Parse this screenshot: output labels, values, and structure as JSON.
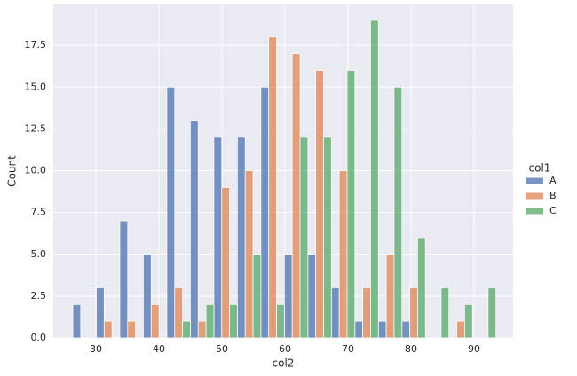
{
  "chart_data": {
    "type": "histogram",
    "multiple": "dodge",
    "x_label": "col2",
    "y_label": "Count",
    "legend_title": "col1",
    "legend_position": "right",
    "grid": true,
    "bins": [
      26.34,
      30.07,
      33.8,
      37.53,
      41.26,
      44.99,
      48.72,
      52.45,
      56.18,
      59.91,
      63.64,
      67.37,
      71.1,
      74.83,
      78.56,
      82.29,
      86.02,
      89.75,
      93.48
    ],
    "series": [
      {
        "name": "A",
        "color": "#4c72b0",
        "values": [
          2,
          3,
          7,
          5,
          15,
          13,
          12,
          12,
          15,
          5,
          5,
          3,
          1,
          1,
          1,
          0,
          0,
          0
        ]
      },
      {
        "name": "B",
        "color": "#dd8452",
        "values": [
          0,
          1,
          1,
          2,
          3,
          1,
          9,
          10,
          18,
          17,
          16,
          10,
          3,
          5,
          3,
          0,
          1,
          0
        ]
      },
      {
        "name": "C",
        "color": "#55a868",
        "values": [
          0,
          0,
          0,
          0,
          1,
          2,
          2,
          5,
          2,
          12,
          12,
          16,
          19,
          15,
          6,
          3,
          2,
          3
        ]
      }
    ],
    "xlim": [
      23.24,
      96.2
    ],
    "xticks": [
      30,
      40,
      50,
      60,
      70,
      80,
      90
    ],
    "ylim": [
      0,
      19.95
    ],
    "yticks": [
      {
        "value": 0,
        "label": "0.0"
      },
      2.5,
      {
        "value": 5,
        "label": "5.0"
      },
      7.5,
      {
        "value": 10,
        "label": "10.0"
      },
      12.5,
      {
        "value": 15,
        "label": "15.0"
      },
      17.5
    ]
  }
}
